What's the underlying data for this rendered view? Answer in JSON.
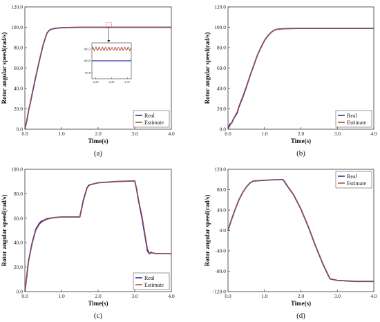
{
  "chart_data": [
    {
      "type": "line",
      "panel_label": "(a)",
      "xlabel": "Time(s)",
      "ylabel": "Rotor angular speed(rad/s)",
      "xlim": [
        0.0,
        4.0
      ],
      "ylim": [
        0.0,
        120.0
      ],
      "xticks": [
        "0.0",
        "1.0",
        "2.0",
        "3.0",
        "4.0"
      ],
      "yticks": [
        "0.0",
        "20.0",
        "40.0",
        "60.0",
        "80.0",
        "100.0",
        "120.0"
      ],
      "legend": {
        "position": "bottom-right",
        "entries": [
          "Real",
          "Estimate"
        ]
      },
      "series": [
        {
          "name": "Real",
          "color": "#2e2ea8",
          "x": [
            0.0,
            0.05,
            0.1,
            0.15,
            0.2,
            0.3,
            0.4,
            0.5,
            0.6,
            0.65,
            0.7,
            0.8,
            1.0,
            1.5,
            2.0,
            2.5,
            3.0,
            3.5,
            4.0
          ],
          "y": [
            0.0,
            8.0,
            18.0,
            26.0,
            35.0,
            52.0,
            68.0,
            83.0,
            94.0,
            96.5,
            97.8,
            98.8,
            99.6,
            100.0,
            100.0,
            100.0,
            100.0,
            100.0,
            100.0
          ]
        },
        {
          "name": "Estimate",
          "color": "#b0503c",
          "x": [
            0.0,
            0.05,
            0.1,
            0.15,
            0.2,
            0.3,
            0.4,
            0.5,
            0.6,
            0.65,
            0.7,
            0.8,
            1.0,
            1.5,
            2.0,
            2.5,
            3.0,
            3.5,
            4.0
          ],
          "y": [
            0.0,
            9.0,
            17.0,
            27.0,
            36.0,
            53.0,
            68.5,
            83.5,
            94.5,
            96.8,
            98.0,
            99.0,
            99.8,
            100.2,
            100.2,
            100.2,
            100.2,
            100.2,
            100.2
          ]
        }
      ],
      "inset": {
        "xticks": [
          "2.29",
          "2.33",
          "2.37"
        ],
        "yticks": [
          "99.8",
          "100.0",
          "100.2"
        ],
        "xlim": [
          2.28,
          2.38
        ],
        "ylim": [
          99.7,
          100.3
        ],
        "real_level": 100.0,
        "estimate_level": 100.2
      }
    },
    {
      "type": "line",
      "panel_label": "(b)",
      "xlabel": "Time(s)",
      "ylabel": "Rotor angular speed(rad/s)",
      "xlim": [
        0.0,
        4.0
      ],
      "ylim": [
        0.0,
        120.0
      ],
      "xticks": [
        "0.0",
        "1.0",
        "2.0",
        "3.0",
        "4.0"
      ],
      "yticks": [
        "0.0",
        "20.0",
        "40.0",
        "60.0",
        "80.0",
        "100.0",
        "120.0"
      ],
      "legend": {
        "position": "bottom-right",
        "entries": [
          "Real",
          "Estimate"
        ]
      },
      "series": [
        {
          "name": "Real",
          "color": "#2e2ea8",
          "x": [
            0.0,
            0.05,
            0.1,
            0.15,
            0.2,
            0.25,
            0.3,
            0.4,
            0.5,
            0.6,
            0.7,
            0.8,
            0.9,
            1.0,
            1.1,
            1.2,
            1.3,
            1.5,
            2.0,
            3.0,
            4.0
          ],
          "y": [
            0.0,
            5.0,
            6.0,
            10.0,
            13.0,
            16.0,
            22.0,
            31.0,
            41.0,
            52.0,
            62.0,
            72.0,
            80.0,
            87.0,
            92.0,
            95.5,
            97.8,
            98.6,
            99.0,
            99.0,
            99.0
          ]
        },
        {
          "name": "Estimate",
          "color": "#b0503c",
          "x": [
            0.0,
            0.05,
            0.1,
            0.15,
            0.2,
            0.25,
            0.3,
            0.4,
            0.5,
            0.6,
            0.7,
            0.8,
            0.9,
            1.0,
            1.1,
            1.2,
            1.3,
            1.5,
            2.0,
            3.0,
            4.0
          ],
          "y": [
            0.0,
            3.0,
            7.0,
            9.0,
            14.0,
            17.0,
            23.0,
            32.0,
            42.0,
            52.5,
            62.5,
            72.0,
            80.5,
            87.0,
            92.0,
            95.5,
            97.8,
            98.6,
            99.0,
            99.0,
            99.0
          ]
        }
      ]
    },
    {
      "type": "line",
      "panel_label": "(c)",
      "xlabel": "Time(s)",
      "ylabel": "Rotor angular speed(rad/s)",
      "xlim": [
        0.0,
        4.0
      ],
      "ylim": [
        0.0,
        100.0
      ],
      "xticks": [
        "0.0",
        "1.0",
        "2.0",
        "3.0",
        "4.0"
      ],
      "yticks": [
        "0.0",
        "20.0",
        "40.0",
        "60.0",
        "80.0",
        "100.0"
      ],
      "legend": {
        "position": "bottom-right",
        "entries": [
          "Real",
          "Estimate"
        ]
      },
      "series": [
        {
          "name": "Real",
          "color": "#2e2ea8",
          "x": [
            0.0,
            0.05,
            0.1,
            0.2,
            0.3,
            0.4,
            0.45,
            0.5,
            0.6,
            0.8,
            1.0,
            1.5,
            1.55,
            1.6,
            1.7,
            1.75,
            1.8,
            2.0,
            2.5,
            3.0,
            3.05,
            3.1,
            3.2,
            3.3,
            3.35,
            3.4,
            3.45,
            3.5,
            3.6,
            4.0
          ],
          "y": [
            0.0,
            12.0,
            25.0,
            40.0,
            51.0,
            56.0,
            57.5,
            58.0,
            59.5,
            60.5,
            61.0,
            61.0,
            68.0,
            75.0,
            85.0,
            87.0,
            87.5,
            89.0,
            90.0,
            90.5,
            84.0,
            75.0,
            60.0,
            42.0,
            33.0,
            31.0,
            32.0,
            31.5,
            31.0,
            31.0
          ]
        },
        {
          "name": "Estimate",
          "color": "#b0503c",
          "x": [
            0.0,
            0.05,
            0.1,
            0.2,
            0.3,
            0.4,
            0.45,
            0.5,
            0.6,
            0.8,
            1.0,
            1.5,
            1.55,
            1.6,
            1.7,
            1.75,
            1.8,
            2.0,
            2.5,
            3.0,
            3.05,
            3.1,
            3.2,
            3.3,
            3.35,
            3.4,
            3.45,
            3.5,
            3.6,
            4.0
          ],
          "y": [
            0.0,
            11.0,
            24.0,
            39.0,
            50.0,
            55.0,
            56.5,
            57.5,
            59.0,
            60.5,
            61.0,
            61.0,
            67.0,
            74.0,
            84.5,
            86.5,
            87.5,
            89.0,
            90.0,
            90.5,
            85.0,
            76.0,
            62.0,
            44.0,
            35.0,
            31.5,
            32.5,
            31.5,
            31.0,
            31.0
          ]
        }
      ]
    },
    {
      "type": "line",
      "panel_label": "(d)",
      "xlabel": "Time(s)",
      "ylabel": "Rotor angular speed(rad/s)",
      "xlim": [
        0.0,
        4.0
      ],
      "ylim": [
        -120.0,
        120.0
      ],
      "xticks": [
        "0.0",
        "1.0",
        "2.0",
        "3.0",
        "4.0"
      ],
      "yticks": [
        "-120.0",
        "-80.0",
        "-40.0",
        "0.0",
        "40.0",
        "80.0",
        "120.0"
      ],
      "legend": {
        "position": "top-right",
        "entries": [
          "Real",
          "Estimate"
        ]
      },
      "series": [
        {
          "name": "Real",
          "color": "#2e2ea8",
          "x": [
            0.0,
            0.1,
            0.2,
            0.3,
            0.4,
            0.5,
            0.6,
            0.7,
            1.0,
            1.3,
            1.5,
            1.55,
            1.6,
            1.8,
            2.0,
            2.2,
            2.4,
            2.6,
            2.75,
            2.8,
            3.0,
            3.5,
            4.0
          ],
          "y": [
            0.0,
            22.0,
            42.0,
            60.0,
            74.0,
            85.0,
            93.0,
            97.0,
            98.5,
            99.5,
            100.0,
            96.0,
            90.0,
            70.0,
            42.0,
            8.0,
            -30.0,
            -65.0,
            -88.0,
            -95.0,
            -98.0,
            -100.0,
            -100.0
          ]
        },
        {
          "name": "Estimate",
          "color": "#b0503c",
          "x": [
            0.0,
            0.1,
            0.2,
            0.3,
            0.4,
            0.5,
            0.6,
            0.7,
            1.0,
            1.3,
            1.5,
            1.55,
            1.6,
            1.8,
            2.0,
            2.2,
            2.4,
            2.6,
            2.75,
            2.8,
            3.0,
            3.5,
            4.0
          ],
          "y": [
            0.0,
            21.0,
            41.5,
            59.5,
            73.5,
            85.0,
            93.0,
            97.0,
            98.5,
            99.5,
            100.0,
            97.0,
            91.0,
            71.0,
            43.0,
            9.0,
            -29.0,
            -64.0,
            -87.0,
            -95.0,
            -98.0,
            -100.0,
            -100.0
          ]
        }
      ]
    }
  ]
}
